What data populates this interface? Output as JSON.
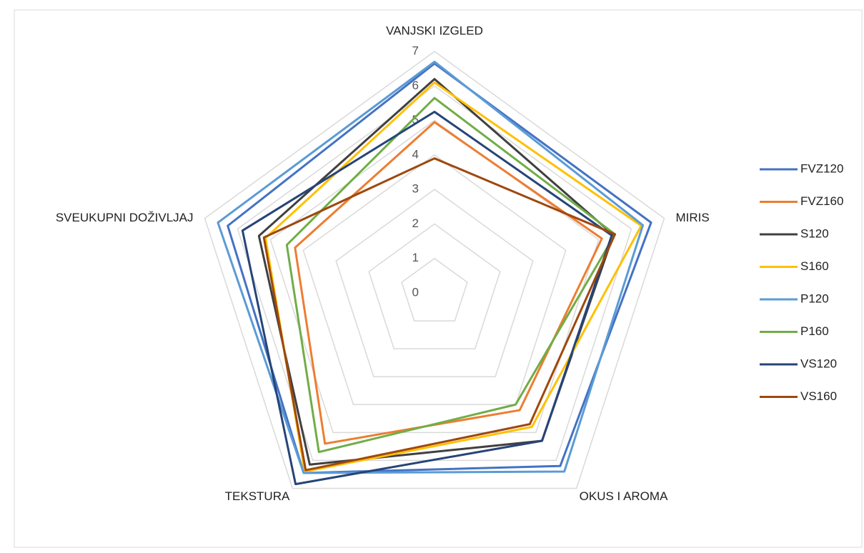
{
  "chart_data": {
    "type": "radar",
    "categories": [
      "VANJSKI IZGLED",
      "MIRIS",
      "OKUS I AROMA",
      "TEKSTURA",
      "SVEUKUPNI DOŽIVLJAJ"
    ],
    "ylim": [
      0,
      7
    ],
    "yticks": [
      0,
      1,
      2,
      3,
      4,
      5,
      6,
      7
    ],
    "grid": true,
    "legend": "right",
    "series": [
      {
        "name": "FVZ120",
        "color": "#4472c4",
        "values": [
          6.65,
          6.6,
          6.2,
          6.45,
          6.3
        ]
      },
      {
        "name": "FVZ160",
        "color": "#ed7d31",
        "values": [
          4.95,
          5.1,
          4.2,
          5.4,
          4.25
        ]
      },
      {
        "name": "S120",
        "color": "#404040",
        "values": [
          6.2,
          5.45,
          5.3,
          6.15,
          5.35
        ]
      },
      {
        "name": "S160",
        "color": "#ffc000",
        "values": [
          6.1,
          6.3,
          4.8,
          6.4,
          5.15
        ]
      },
      {
        "name": "P120",
        "color": "#5b9bd5",
        "values": [
          6.7,
          6.35,
          6.4,
          6.45,
          6.6
        ]
      },
      {
        "name": "P160",
        "color": "#70ad47",
        "values": [
          5.65,
          5.5,
          4.0,
          5.7,
          4.5
        ]
      },
      {
        "name": "VS120",
        "color": "#264478",
        "values": [
          5.25,
          5.4,
          5.3,
          6.85,
          5.85
        ]
      },
      {
        "name": "VS160",
        "color": "#9e480e",
        "values": [
          3.9,
          5.5,
          4.7,
          6.35,
          5.2
        ]
      }
    ]
  }
}
